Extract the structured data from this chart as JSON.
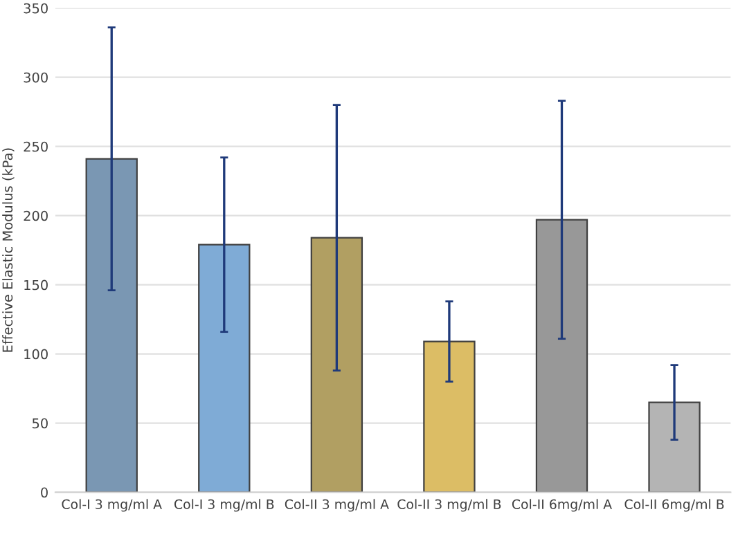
{
  "chart_data": {
    "type": "bar",
    "ylabel": "Effective Elastic Modulus (kPa)",
    "categories": [
      "Col-I 3 mg/ml A",
      "Col-I 3 mg/ml B",
      "Col-II 3 mg/ml A",
      "Col-II 3 mg/ml B",
      "Col-II 6mg/ml A",
      "Col-II 6mg/ml B"
    ],
    "values": [
      241,
      179,
      184,
      109,
      197,
      65
    ],
    "errors": [
      95,
      63,
      96,
      29,
      86,
      27
    ],
    "colors": [
      "#7a97b3",
      "#7fabd6",
      "#b19f62",
      "#dcbd65",
      "#989898",
      "#b4b4b4"
    ],
    "ylim": [
      0,
      350
    ],
    "yticks": [
      0,
      50,
      100,
      150,
      200,
      250,
      300,
      350
    ],
    "grid": "y"
  }
}
